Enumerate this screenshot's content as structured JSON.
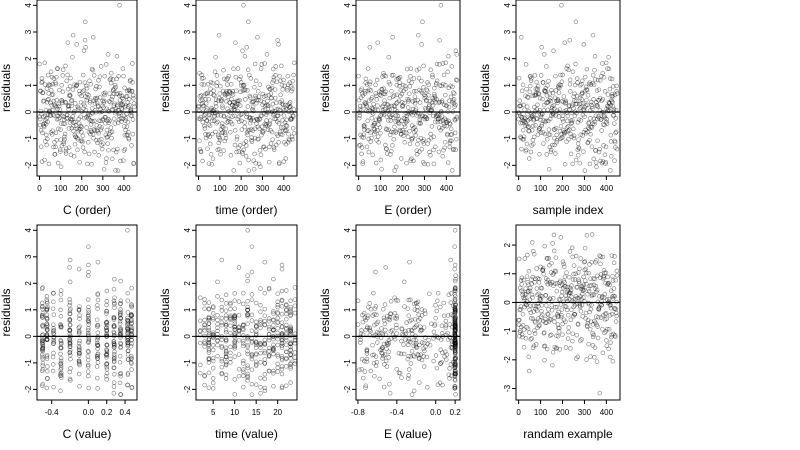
{
  "chart_data": [
    {
      "type": "scatter",
      "xlabel": "C (order)",
      "ylabel": "residuals",
      "xlim": [
        -12,
        462
      ],
      "ylim": [
        -2.4,
        4.2
      ],
      "xticks": [
        0,
        100,
        200,
        300,
        400
      ],
      "yticks": [
        -2,
        -1,
        0,
        1,
        2,
        3,
        4
      ],
      "reference_line_y": 0,
      "n_points": 450
    },
    {
      "type": "scatter",
      "xlabel": "time (order)",
      "ylabel": "residuals",
      "xlim": [
        -12,
        462
      ],
      "ylim": [
        -2.4,
        4.2
      ],
      "xticks": [
        0,
        100,
        200,
        300,
        400
      ],
      "yticks": [
        -2,
        -1,
        0,
        1,
        2,
        3,
        4
      ],
      "reference_line_y": 0,
      "n_points": 450
    },
    {
      "type": "scatter",
      "xlabel": "E (order)",
      "ylabel": "residuals",
      "xlim": [
        -12,
        462
      ],
      "ylim": [
        -2.4,
        4.2
      ],
      "xticks": [
        0,
        100,
        200,
        300,
        400
      ],
      "yticks": [
        -2,
        -1,
        0,
        1,
        2,
        3,
        4
      ],
      "reference_line_y": 0,
      "n_points": 450
    },
    {
      "type": "scatter",
      "xlabel": "sample index",
      "ylabel": "residuals",
      "xlim": [
        -12,
        462
      ],
      "ylim": [
        -2.4,
        4.2
      ],
      "xticks": [
        0,
        100,
        200,
        300,
        400
      ],
      "yticks": [
        -2,
        -1,
        0,
        1,
        2,
        3,
        4
      ],
      "reference_line_y": 0,
      "n_points": 450
    },
    {
      "type": "scatter",
      "xlabel": "C (value)",
      "ylabel": "residuals",
      "xlim": [
        -0.56,
        0.53
      ],
      "ylim": [
        -2.4,
        4.2
      ],
      "xticks": [
        -0.4,
        0.0,
        0.2,
        0.4
      ],
      "xtick_labels": [
        "-0.4",
        "0.0",
        "0.2",
        "0.4"
      ],
      "yticks": [
        -2,
        -1,
        0,
        1,
        2,
        3,
        4
      ],
      "reference_line_y": 0,
      "n_points": 450
    },
    {
      "type": "scatter",
      "xlabel": "time (value)",
      "ylabel": "residuals",
      "xlim": [
        1,
        24.5
      ],
      "ylim": [
        -2.4,
        4.2
      ],
      "xticks": [
        5,
        10,
        15,
        20
      ],
      "yticks": [
        -2,
        -1,
        0,
        1,
        2,
        3,
        4
      ],
      "reference_line_y": 0,
      "n_points": 450
    },
    {
      "type": "scatter",
      "xlabel": "E (value)",
      "ylabel": "residuals",
      "xlim": [
        -0.82,
        0.25
      ],
      "ylim": [
        -2.4,
        4.2
      ],
      "xticks": [
        -0.8,
        -0.4,
        0.0,
        0.2
      ],
      "xtick_labels": [
        "-0.8",
        "-0.4",
        "0.0",
        "0.2"
      ],
      "yticks": [
        -2,
        -1,
        0,
        1,
        2,
        3,
        4
      ],
      "reference_line_y": 0,
      "n_points": 450
    },
    {
      "type": "scatter",
      "xlabel": "randam example",
      "ylabel": "residuals",
      "xlim": [
        -12,
        462
      ],
      "ylim": [
        -3.4,
        2.7
      ],
      "xticks": [
        0,
        100,
        200,
        300,
        400
      ],
      "yticks": [
        -3,
        -2,
        -1,
        0,
        1,
        2
      ],
      "reference_line_y": 0,
      "n_points": 450
    }
  ]
}
